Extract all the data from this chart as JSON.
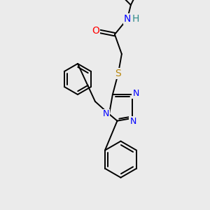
{
  "bg_color": "#ebebeb",
  "atom_colors": {
    "N": "#0000FF",
    "O": "#FF0000",
    "S": "#B8860B",
    "H": "#2F8B8B",
    "C": "#000000"
  },
  "font_size": 9,
  "fig_size": [
    3.0,
    3.0
  ],
  "dpi": 100
}
